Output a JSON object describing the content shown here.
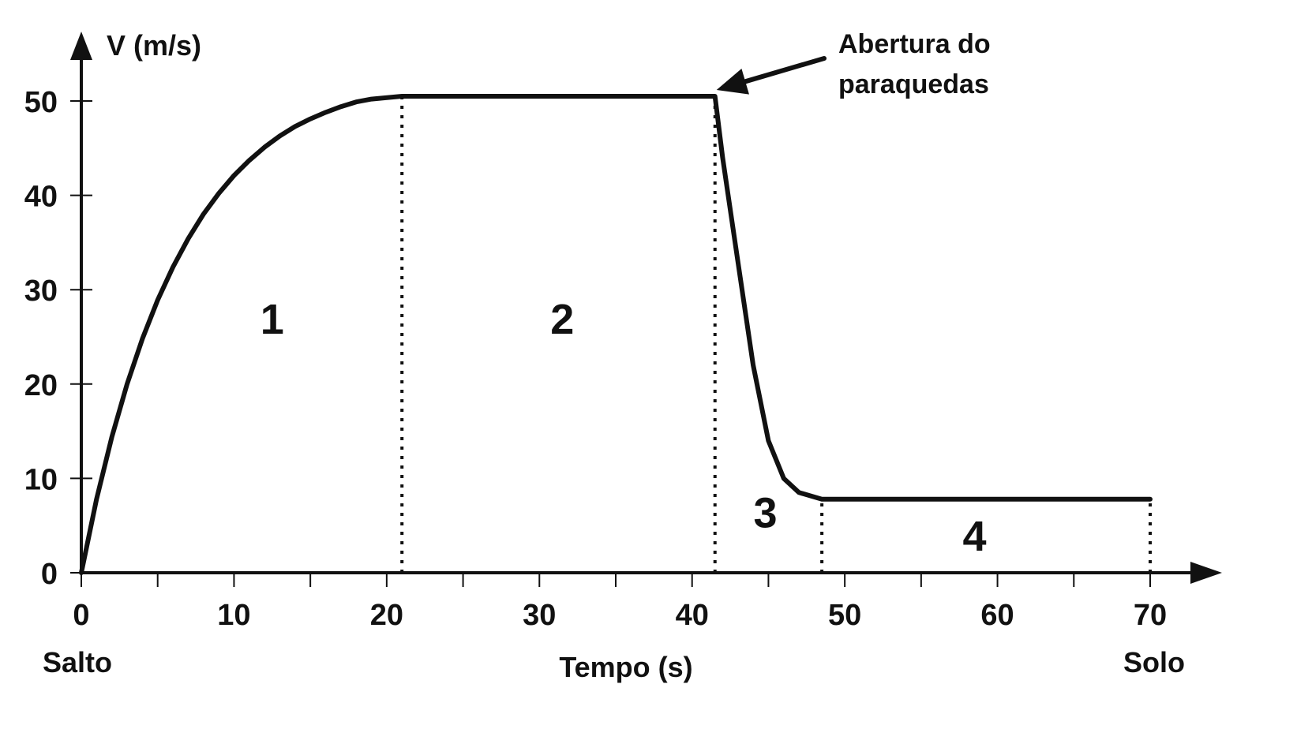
{
  "chart_data": {
    "type": "line",
    "ylabel": "V (m/s)",
    "xlabel": "Tempo (s)",
    "xlim": [
      0,
      75
    ],
    "ylim": [
      0,
      52
    ],
    "xticks": [
      0,
      10,
      20,
      30,
      40,
      50,
      60,
      70
    ],
    "xtick_labels": [
      "0",
      "10",
      "20",
      "30",
      "40",
      "50",
      "60",
      "70"
    ],
    "x_minor_ticks": [
      5,
      15,
      25,
      35,
      45,
      55,
      65
    ],
    "yticks": [
      0,
      10,
      20,
      30,
      40,
      50
    ],
    "ytick_labels": [
      "0",
      "10",
      "20",
      "30",
      "40",
      "50"
    ],
    "grid": false,
    "series": [
      {
        "x": [
          0,
          1,
          2,
          3,
          4,
          5,
          6,
          7,
          8,
          9,
          10,
          11,
          12,
          13,
          14,
          15,
          16,
          17,
          18,
          19,
          21,
          41.5,
          42,
          43,
          44,
          45,
          46,
          47,
          48.5,
          70
        ],
        "values": [
          0,
          7.8,
          14.4,
          20.0,
          24.8,
          28.9,
          32.4,
          35.4,
          38.0,
          40.2,
          42.1,
          43.7,
          45.1,
          46.3,
          47.3,
          48.1,
          48.8,
          49.4,
          49.9,
          50.2,
          50.5,
          50.5,
          44,
          33,
          22,
          14,
          10,
          8.5,
          7.8,
          7.8
        ]
      }
    ],
    "region_dividers": [
      21,
      41.5,
      48.5,
      70
    ],
    "regions": [
      {
        "label": "1",
        "x": 12.5,
        "y": 27
      },
      {
        "label": "2",
        "x": 31.5,
        "y": 27
      },
      {
        "label": "3",
        "x": 44.8,
        "y": 6.5
      },
      {
        "label": "4",
        "x": 58.5,
        "y": 4
      }
    ],
    "annotation": {
      "lines": [
        "Abertura do",
        "paraquedas"
      ],
      "points_to": {
        "x": 41.5,
        "y": 50.5
      }
    },
    "x_start_label": "Salto",
    "x_end_label": "Solo",
    "line_color": "#111111"
  }
}
